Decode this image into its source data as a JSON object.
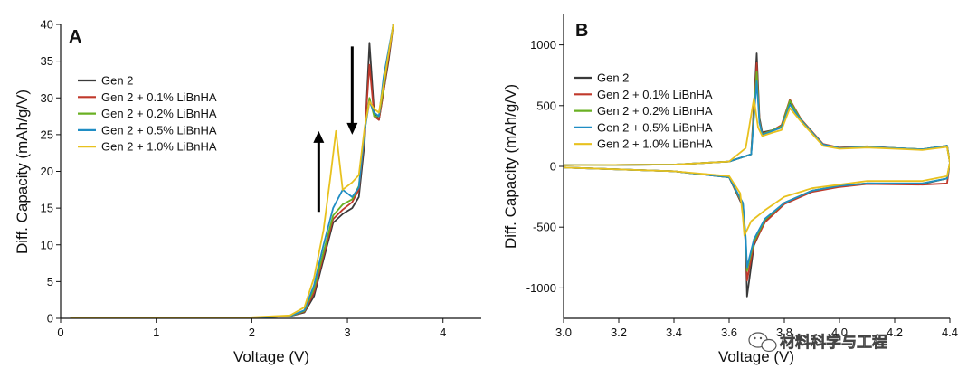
{
  "watermark": "材料科学与工程",
  "chart_data": [
    {
      "type": "line",
      "panel": "A",
      "xlabel": "Voltage (V)",
      "ylabel": "Diff. Capacity (mAh/g/V)",
      "xlim": [
        0,
        4.4
      ],
      "ylim": [
        0,
        40
      ],
      "xticks": [
        0,
        1,
        2,
        3,
        4
      ],
      "yticks": [
        0,
        5,
        10,
        15,
        20,
        25,
        30,
        35,
        40
      ],
      "legend_position": "top-left",
      "legend": [
        "Gen 2",
        "Gen 2 + 0.1% LiBnHA",
        "Gen 2 + 0.2% LiBnHA",
        "Gen 2 + 0.5% LiBnHA",
        "Gen 2 + 1.0% LiBnHA"
      ],
      "arrows": [
        {
          "direction": "up",
          "x": 2.7,
          "from": 14.5,
          "to": 25.5
        },
        {
          "direction": "down",
          "x": 3.05,
          "from": 37,
          "to": 25
        }
      ],
      "series": [
        {
          "name": "Gen 2",
          "color": "#3a3a3a",
          "x": [
            0.1,
            1.0,
            2.0,
            2.4,
            2.55,
            2.65,
            2.75,
            2.85,
            2.95,
            3.05,
            3.12,
            3.18,
            3.23,
            3.28,
            3.33,
            3.38,
            3.43,
            3.48
          ],
          "y": [
            0.05,
            0.05,
            0.1,
            0.3,
            0.8,
            3,
            8,
            13,
            14.2,
            15,
            16.5,
            24,
            37.5,
            28,
            27,
            31,
            35,
            40
          ]
        },
        {
          "name": "Gen 2 + 0.1% LiBnHA",
          "color": "#c0392b",
          "x": [
            0.1,
            1.0,
            2.0,
            2.4,
            2.55,
            2.65,
            2.75,
            2.85,
            2.95,
            3.05,
            3.12,
            3.18,
            3.23,
            3.28,
            3.33,
            3.38,
            3.43,
            3.48
          ],
          "y": [
            0.05,
            0.05,
            0.1,
            0.3,
            0.9,
            3.5,
            8.5,
            13.5,
            14.8,
            15.8,
            17.5,
            25,
            34.5,
            27.5,
            27,
            31,
            35.5,
            40
          ]
        },
        {
          "name": "Gen 2 + 0.2% LiBnHA",
          "color": "#6ab023",
          "x": [
            0.1,
            1.0,
            2.0,
            2.4,
            2.55,
            2.65,
            2.75,
            2.85,
            2.95,
            3.05,
            3.12,
            3.18,
            3.23,
            3.28,
            3.33,
            3.38,
            3.43,
            3.48
          ],
          "y": [
            0.05,
            0.05,
            0.1,
            0.3,
            1.0,
            4,
            9,
            14,
            15.5,
            16.2,
            18,
            25.5,
            30,
            27.5,
            27.5,
            31.5,
            36,
            40
          ]
        },
        {
          "name": "Gen 2 + 0.5% LiBnHA",
          "color": "#1f8dc4",
          "x": [
            0.1,
            1.0,
            2.0,
            2.4,
            2.55,
            2.65,
            2.75,
            2.85,
            2.95,
            3.05,
            3.12,
            3.18,
            3.23,
            3.28,
            3.33,
            3.38,
            3.43,
            3.48
          ],
          "y": [
            0.05,
            0.05,
            0.1,
            0.3,
            1.1,
            4.5,
            10,
            15,
            17.5,
            16.5,
            17.8,
            25.5,
            29.5,
            28,
            27.5,
            33,
            36.5,
            40
          ]
        },
        {
          "name": "Gen 2 + 1.0% LiBnHA",
          "color": "#e8c11e",
          "x": [
            0.1,
            1.0,
            2.0,
            2.4,
            2.55,
            2.65,
            2.75,
            2.82,
            2.88,
            2.95,
            3.05,
            3.12,
            3.18,
            3.23,
            3.28,
            3.33,
            3.38,
            3.43,
            3.48
          ],
          "y": [
            0.05,
            0.05,
            0.15,
            0.4,
            1.5,
            5.5,
            12,
            19,
            25.5,
            17.5,
            18.5,
            19.5,
            26,
            29.5,
            28.5,
            28,
            32,
            36,
            40
          ]
        }
      ]
    },
    {
      "type": "line",
      "panel": "B",
      "xlabel": "Voltage (V)",
      "ylabel": "Diff. Capacity (mAh/g/V)",
      "xlim": [
        3.0,
        4.4
      ],
      "ylim": [
        -1250,
        1250
      ],
      "xticks": [
        3.0,
        3.2,
        3.4,
        3.6,
        3.8,
        4.0,
        4.2,
        4.4
      ],
      "xtick_labels": [
        "3.0",
        "3.2",
        "3.4",
        "3.6",
        "3.8",
        "4.0",
        "4.2",
        "4.4"
      ],
      "yticks": [
        -1000,
        -500,
        0,
        500,
        1000
      ],
      "legend_position": "top-left",
      "legend": [
        "Gen 2",
        "Gen 2 + 0.1% LiBnHA",
        "Gen 2 + 0.2% LiBnHA",
        "Gen 2 + 0.5% LiBnHA",
        "Gen 2 + 1.0% LiBnHA"
      ],
      "series": [
        {
          "name": "Gen 2",
          "color": "#3a3a3a",
          "x": [
            3.0,
            3.4,
            3.6,
            3.68,
            3.7,
            3.71,
            3.72,
            3.76,
            3.79,
            3.82,
            3.86,
            3.94,
            4.0,
            4.1,
            4.2,
            4.3,
            4.39,
            4.4,
            4.39,
            4.3,
            4.1,
            4.0,
            3.9,
            3.8,
            3.73,
            3.69,
            3.665,
            3.66,
            3.65,
            3.6,
            3.4,
            3.0
          ],
          "y": [
            10,
            15,
            40,
            100,
            930,
            400,
            280,
            300,
            330,
            520,
            380,
            180,
            150,
            160,
            150,
            140,
            170,
            30,
            -100,
            -145,
            -140,
            -165,
            -200,
            -300,
            -450,
            -650,
            -1070,
            -650,
            -330,
            -90,
            -40,
            -10
          ]
        },
        {
          "name": "Gen 2 + 0.1% LiBnHA",
          "color": "#c0392b",
          "x": [
            3.0,
            3.4,
            3.6,
            3.68,
            3.7,
            3.71,
            3.72,
            3.76,
            3.79,
            3.82,
            3.86,
            3.94,
            4.0,
            4.1,
            4.2,
            4.3,
            4.39,
            4.4,
            4.39,
            4.3,
            4.1,
            4.0,
            3.9,
            3.8,
            3.73,
            3.69,
            3.665,
            3.66,
            3.65,
            3.6,
            3.4,
            3.0
          ],
          "y": [
            10,
            15,
            40,
            100,
            850,
            380,
            270,
            300,
            340,
            550,
            390,
            185,
            155,
            165,
            150,
            140,
            170,
            30,
            -140,
            -150,
            -145,
            -170,
            -210,
            -310,
            -460,
            -640,
            -940,
            -620,
            -320,
            -90,
            -40,
            -10
          ]
        },
        {
          "name": "Gen 2 + 0.2% LiBnHA",
          "color": "#6ab023",
          "x": [
            3.0,
            3.4,
            3.6,
            3.68,
            3.7,
            3.71,
            3.72,
            3.76,
            3.79,
            3.82,
            3.86,
            3.94,
            4.0,
            4.1,
            4.2,
            4.3,
            4.39,
            4.4,
            4.39,
            4.3,
            4.1,
            4.0,
            3.9,
            3.8,
            3.73,
            3.69,
            3.665,
            3.66,
            3.65,
            3.6,
            3.4,
            3.0
          ],
          "y": [
            10,
            15,
            40,
            100,
            780,
            370,
            265,
            300,
            330,
            540,
            385,
            180,
            150,
            160,
            150,
            140,
            170,
            30,
            -100,
            -140,
            -140,
            -160,
            -200,
            -300,
            -440,
            -620,
            -860,
            -600,
            -310,
            -90,
            -40,
            -10
          ]
        },
        {
          "name": "Gen 2 + 0.5% LiBnHA",
          "color": "#1f8dc4",
          "x": [
            3.0,
            3.4,
            3.6,
            3.68,
            3.7,
            3.71,
            3.72,
            3.76,
            3.79,
            3.82,
            3.86,
            3.94,
            4.0,
            4.1,
            4.2,
            4.3,
            4.39,
            4.4,
            4.39,
            4.3,
            4.1,
            4.0,
            3.9,
            3.8,
            3.73,
            3.69,
            3.665,
            3.66,
            3.65,
            3.6,
            3.4,
            3.0
          ],
          "y": [
            10,
            15,
            40,
            100,
            700,
            360,
            260,
            295,
            320,
            510,
            380,
            180,
            150,
            160,
            150,
            140,
            170,
            30,
            -100,
            -140,
            -140,
            -160,
            -200,
            -300,
            -430,
            -600,
            -830,
            -580,
            -300,
            -90,
            -40,
            -10
          ]
        },
        {
          "name": "Gen 2 + 1.0% LiBnHA",
          "color": "#e8c11e",
          "x": [
            3.0,
            3.4,
            3.6,
            3.66,
            3.69,
            3.705,
            3.72,
            3.76,
            3.79,
            3.82,
            3.86,
            3.94,
            4.0,
            4.1,
            4.2,
            4.3,
            4.39,
            4.4,
            4.39,
            4.3,
            4.1,
            4.0,
            3.9,
            3.8,
            3.73,
            3.68,
            3.655,
            3.65,
            3.64,
            3.6,
            3.4,
            3.0
          ],
          "y": [
            10,
            15,
            40,
            150,
            560,
            320,
            250,
            280,
            300,
            480,
            370,
            170,
            145,
            155,
            145,
            135,
            160,
            30,
            -80,
            -120,
            -120,
            -150,
            -180,
            -250,
            -360,
            -450,
            -570,
            -420,
            -220,
            -80,
            -40,
            -10
          ]
        }
      ]
    }
  ]
}
